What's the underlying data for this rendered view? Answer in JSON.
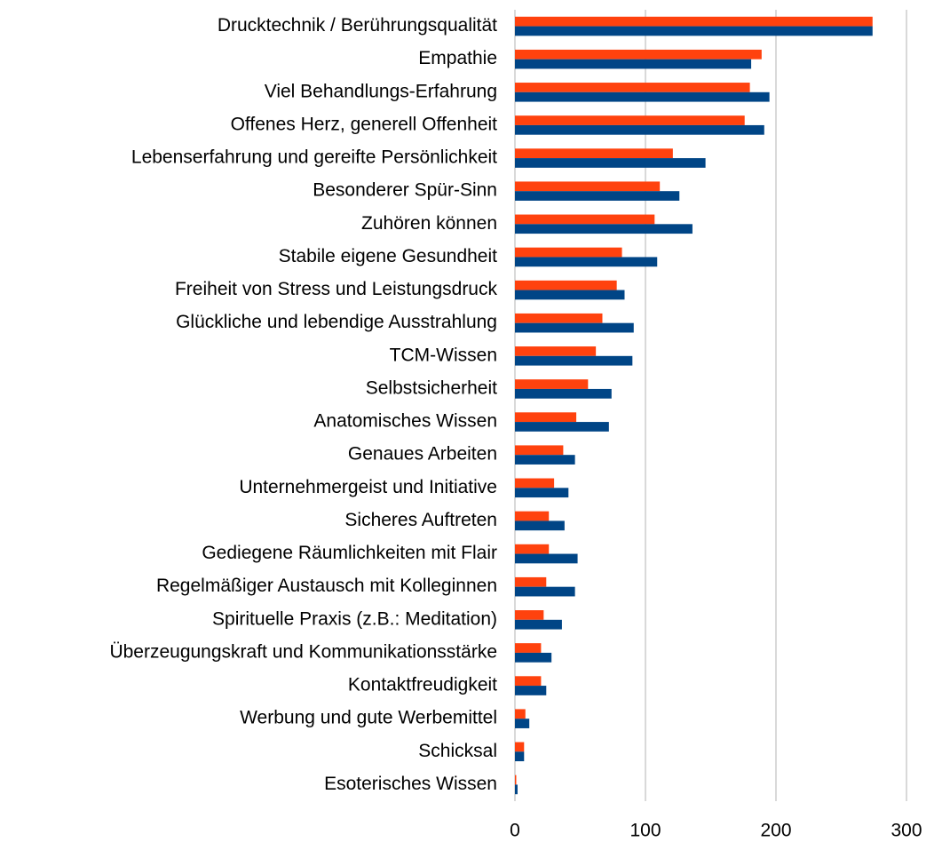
{
  "chart_data": {
    "type": "barh",
    "categories": [
      "Drucktechnik / Berührungsqualität",
      "Empathie",
      "Viel Behandlungs-Erfahrung",
      "Offenes Herz, generell Offenheit",
      "Lebenserfahrung und gereifte Persönlichkeit",
      "Besonderer Spür-Sinn",
      "Zuhören können",
      "Stabile eigene Gesundheit",
      "Freiheit von Stress und Leistungsdruck",
      "Glückliche und lebendige Ausstrahlung",
      "TCM-Wissen",
      "Selbstsicherheit",
      "Anatomisches Wissen",
      "Genaues Arbeiten",
      "Unternehmergeist und Initiative",
      "Sicheres Auftreten",
      "Gediegene Räumlichkeiten mit Flair",
      "Regelmäßiger Austausch mit Kolleginnen",
      "Spirituelle Praxis (z.B.: Meditation)",
      "Überzeugungskraft und Kommunikationsstärke",
      "Kontaktfreudigkeit",
      "Werbung und gute Werbemittel",
      "Schicksal",
      "Esoterisches Wissen"
    ],
    "series": [
      {
        "color": "#ff420e",
        "values": [
          274,
          189,
          180,
          176,
          121,
          111,
          107,
          82,
          78,
          67,
          62,
          56,
          47,
          37,
          30,
          26,
          26,
          24,
          22,
          20,
          20,
          8,
          7,
          1
        ]
      },
      {
        "color": "#004586",
        "values": [
          274,
          181,
          195,
          191,
          146,
          126,
          136,
          109,
          84,
          91,
          90,
          74,
          72,
          46,
          41,
          38,
          48,
          46,
          36,
          28,
          24,
          11,
          7,
          2
        ]
      }
    ],
    "xlim": [
      0,
      300
    ],
    "xticks": [
      0,
      100,
      200,
      300
    ],
    "grid": true
  }
}
